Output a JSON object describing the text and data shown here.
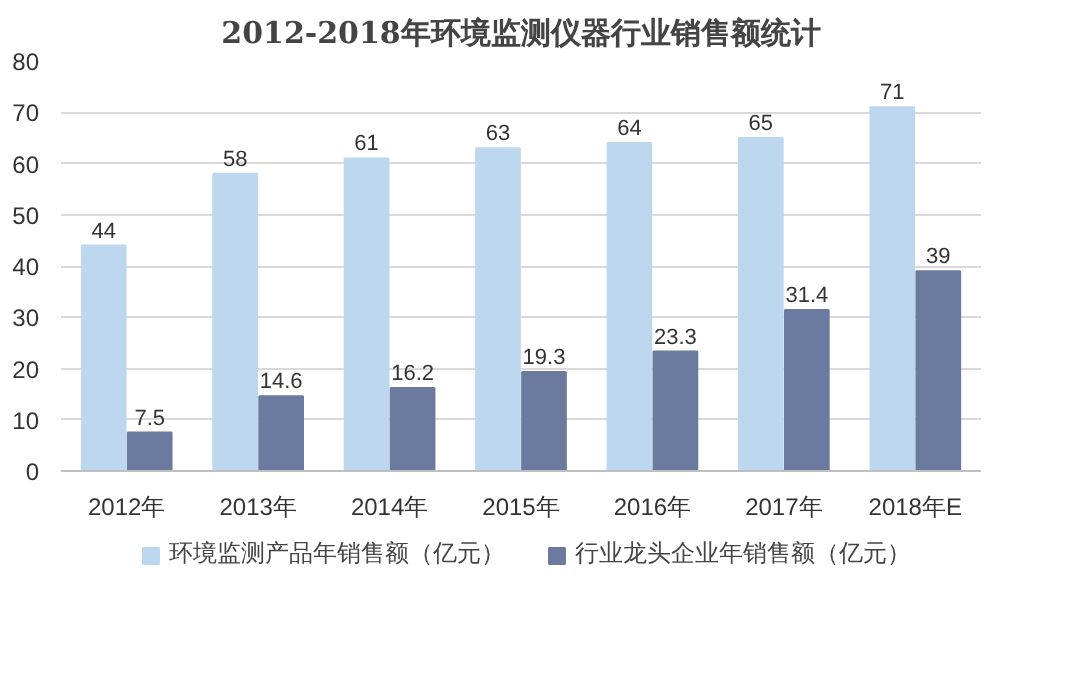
{
  "chart_data": {
    "type": "bar",
    "title": "2012-2018年环境监测仪器行业销售额统计",
    "categories": [
      "2012年",
      "2013年",
      "2014年",
      "2015年",
      "2016年",
      "2017年",
      "2018年E"
    ],
    "series": [
      {
        "name": "环境监测产品年销售额（亿元）",
        "color": "#bdd7ee",
        "values": [
          44,
          58,
          61,
          63,
          64,
          65,
          71
        ]
      },
      {
        "name": "行业龙头企业年销售额（亿元）",
        "color": "#6b7a9f",
        "values": [
          7.5,
          14.6,
          16.2,
          19.3,
          23.3,
          31.4,
          39
        ]
      }
    ],
    "ylim": [
      0,
      80
    ],
    "yticks": [
      0,
      10,
      20,
      30,
      40,
      50,
      60,
      70,
      80
    ],
    "grid": "y",
    "legend": "bottom",
    "data_labels": true
  }
}
